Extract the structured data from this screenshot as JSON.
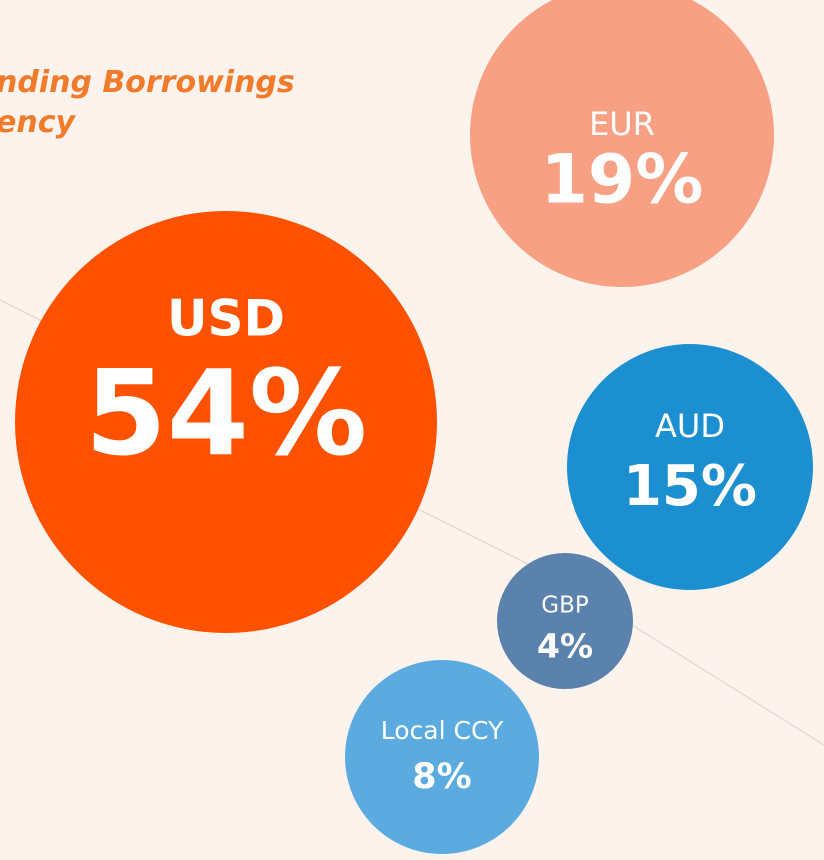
{
  "chart_data": {
    "type": "bubble",
    "title": [
      "nding Borrowings",
      "ency"
    ],
    "categories": [
      "USD",
      "EUR",
      "AUD",
      "GBP",
      "Local CCY"
    ],
    "values": [
      54,
      19,
      15,
      4,
      8
    ],
    "value_labels": [
      "54%",
      "19%",
      "15%",
      "4%",
      "8%"
    ],
    "colors": [
      "#ff5200",
      "#f8a083",
      "#1b8fcf",
      "#5b82ad",
      "#5cabe0"
    ]
  }
}
